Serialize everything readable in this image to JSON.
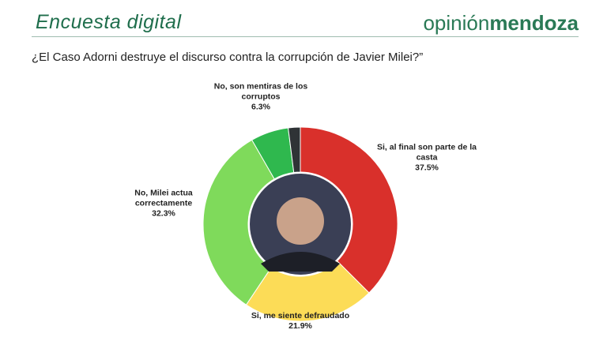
{
  "header": {
    "title": "Encuesta digital",
    "brand_light": "opinión",
    "brand_bold": "mendoza"
  },
  "chart_data": {
    "type": "donut",
    "title": "¿El Caso Adorni destruye el discurso contra la corrupción de Javier Milei?”",
    "categories": [
      "Si, al final son parte de la casta",
      "Si, me siente defraudado",
      "No, Milei actua correctamente",
      "No, son mentiras de los corruptos",
      null
    ],
    "values": [
      37.5,
      21.9,
      32.3,
      6.3,
      2
    ],
    "value_labels": [
      "37.5%",
      "21.9%",
      "32.3%",
      "6.3%",
      null
    ],
    "colors": [
      "#d9302b",
      "#fcdc57",
      "#7fda5b",
      "#2fb84e",
      "#2f3336"
    ]
  }
}
